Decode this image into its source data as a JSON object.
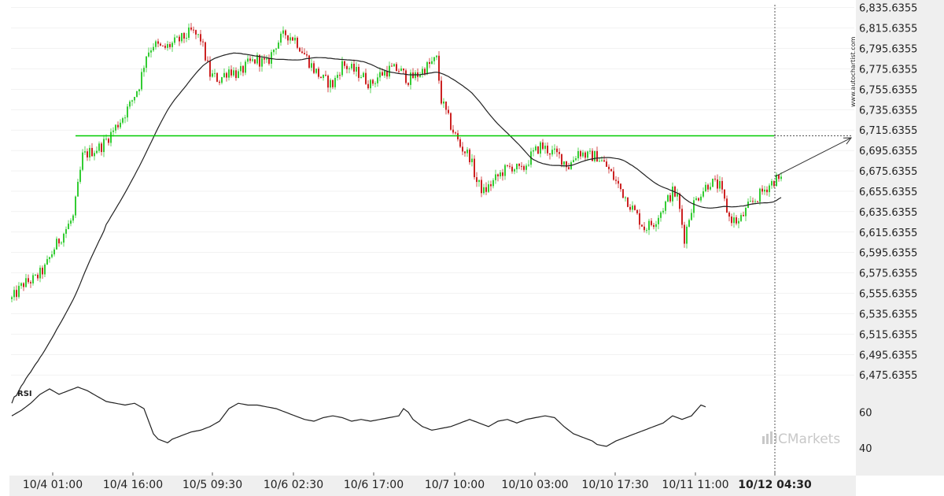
{
  "chart_data": {
    "type": "candlestick",
    "price_axis": {
      "range": [
        6465,
        6840
      ],
      "ticks": [
        "6,835.6355",
        "6,815.6355",
        "6,795.6355",
        "6,775.6355",
        "6,755.6355",
        "6,735.6355",
        "6,715.6355",
        "6,695.6355",
        "6,675.6355",
        "6,655.6355",
        "6,635.6355",
        "6,615.6355",
        "6,595.6355",
        "6,575.6355",
        "6,555.6355",
        "6,535.6355",
        "6,515.6355",
        "6,495.6355",
        "6,475.6355"
      ],
      "tick_values": [
        6835.6355,
        6815.6355,
        6795.6355,
        6775.6355,
        6755.6355,
        6735.6355,
        6715.6355,
        6695.6355,
        6675.6355,
        6655.6355,
        6635.6355,
        6615.6355,
        6595.6355,
        6575.6355,
        6555.6355,
        6535.6355,
        6515.6355,
        6495.6355,
        6475.6355
      ]
    },
    "time_axis": {
      "labels": [
        "10/4 01:00",
        "10/4 16:00",
        "10/5 09:30",
        "10/6 02:30",
        "10/6 17:00",
        "10/7 10:00",
        "10/10 03:00",
        "10/10 17:30",
        "10/11 11:00",
        "10/12 04:30"
      ],
      "bold_label": "10/12 04:30"
    },
    "price_anchors": [
      [
        0,
        6550
      ],
      [
        5,
        6565
      ],
      [
        10,
        6570
      ],
      [
        14,
        6580
      ],
      [
        18,
        6600
      ],
      [
        22,
        6615
      ],
      [
        26,
        6630
      ],
      [
        30,
        6690
      ],
      [
        34,
        6695
      ],
      [
        38,
        6700
      ],
      [
        42,
        6712
      ],
      [
        46,
        6725
      ],
      [
        50,
        6740
      ],
      [
        54,
        6760
      ],
      [
        57,
        6790
      ],
      [
        60,
        6800
      ],
      [
        64,
        6795
      ],
      [
        68,
        6800
      ],
      [
        72,
        6805
      ],
      [
        76,
        6812
      ],
      [
        80,
        6805
      ],
      [
        84,
        6770
      ],
      [
        88,
        6765
      ],
      [
        92,
        6775
      ],
      [
        96,
        6770
      ],
      [
        100,
        6780
      ],
      [
        104,
        6785
      ],
      [
        108,
        6780
      ],
      [
        112,
        6800
      ],
      [
        116,
        6810
      ],
      [
        120,
        6805
      ],
      [
        124,
        6790
      ],
      [
        128,
        6775
      ],
      [
        132,
        6765
      ],
      [
        136,
        6760
      ],
      [
        140,
        6780
      ],
      [
        144,
        6775
      ],
      [
        148,
        6770
      ],
      [
        152,
        6760
      ],
      [
        156,
        6770
      ],
      [
        160,
        6775
      ],
      [
        164,
        6775
      ],
      [
        168,
        6765
      ],
      [
        172,
        6770
      ],
      [
        176,
        6778
      ],
      [
        180,
        6785
      ],
      [
        182,
        6745
      ],
      [
        186,
        6720
      ],
      [
        190,
        6700
      ],
      [
        194,
        6690
      ],
      [
        197,
        6665
      ],
      [
        200,
        6655
      ],
      [
        204,
        6665
      ],
      [
        208,
        6675
      ],
      [
        212,
        6680
      ],
      [
        216,
        6675
      ],
      [
        220,
        6690
      ],
      [
        224,
        6700
      ],
      [
        228,
        6695
      ],
      [
        232,
        6690
      ],
      [
        236,
        6680
      ],
      [
        240,
        6695
      ],
      [
        244,
        6690
      ],
      [
        248,
        6690
      ],
      [
        252,
        6680
      ],
      [
        256,
        6665
      ],
      [
        260,
        6650
      ],
      [
        264,
        6635
      ],
      [
        268,
        6620
      ],
      [
        272,
        6625
      ],
      [
        276,
        6640
      ],
      [
        280,
        6655
      ],
      [
        282,
        6650
      ],
      [
        285,
        6610
      ],
      [
        288,
        6640
      ],
      [
        292,
        6655
      ],
      [
        296,
        6665
      ],
      [
        300,
        6660
      ],
      [
        304,
        6630
      ],
      [
        308,
        6625
      ],
      [
        312,
        6640
      ],
      [
        316,
        6650
      ],
      [
        320,
        6660
      ],
      [
        324,
        6668
      ],
      [
        326,
        6665
      ]
    ],
    "ma_period": 40,
    "rsi": {
      "label": "RSI",
      "ticks": [
        "60",
        "40"
      ],
      "tick_values": [
        60,
        40
      ],
      "range": [
        30,
        80
      ],
      "anchors": [
        [
          0,
          58
        ],
        [
          4,
          61
        ],
        [
          8,
          65
        ],
        [
          12,
          70
        ],
        [
          16,
          73
        ],
        [
          20,
          70
        ],
        [
          24,
          72
        ],
        [
          28,
          74
        ],
        [
          32,
          72
        ],
        [
          36,
          69
        ],
        [
          40,
          66
        ],
        [
          44,
          65
        ],
        [
          48,
          64
        ],
        [
          52,
          65
        ],
        [
          56,
          62
        ],
        [
          58,
          55
        ],
        [
          60,
          48
        ],
        [
          62,
          45
        ],
        [
          64,
          44
        ],
        [
          66,
          43
        ],
        [
          68,
          45
        ],
        [
          72,
          47
        ],
        [
          76,
          49
        ],
        [
          80,
          50
        ],
        [
          84,
          52
        ],
        [
          88,
          55
        ],
        [
          92,
          62
        ],
        [
          96,
          65
        ],
        [
          100,
          64
        ],
        [
          104,
          64
        ],
        [
          108,
          63
        ],
        [
          112,
          62
        ],
        [
          116,
          60
        ],
        [
          120,
          58
        ],
        [
          124,
          56
        ],
        [
          128,
          55
        ],
        [
          132,
          57
        ],
        [
          136,
          58
        ],
        [
          140,
          57
        ],
        [
          144,
          55
        ],
        [
          148,
          56
        ],
        [
          152,
          55
        ],
        [
          156,
          56
        ],
        [
          160,
          57
        ],
        [
          164,
          58
        ],
        [
          166,
          62
        ],
        [
          168,
          60
        ],
        [
          170,
          56
        ],
        [
          174,
          52
        ],
        [
          178,
          50
        ],
        [
          182,
          51
        ],
        [
          186,
          52
        ],
        [
          190,
          54
        ],
        [
          194,
          56
        ],
        [
          198,
          54
        ],
        [
          202,
          52
        ],
        [
          206,
          55
        ],
        [
          210,
          56
        ],
        [
          214,
          54
        ],
        [
          218,
          56
        ],
        [
          222,
          57
        ],
        [
          226,
          58
        ],
        [
          230,
          57
        ],
        [
          234,
          52
        ],
        [
          238,
          48
        ],
        [
          242,
          46
        ],
        [
          246,
          44
        ],
        [
          248,
          42
        ],
        [
          252,
          41
        ],
        [
          256,
          44
        ],
        [
          260,
          46
        ],
        [
          264,
          48
        ],
        [
          268,
          50
        ],
        [
          272,
          52
        ],
        [
          276,
          54
        ],
        [
          278,
          56
        ],
        [
          280,
          58
        ],
        [
          282,
          57
        ],
        [
          284,
          56
        ],
        [
          286,
          57
        ],
        [
          288,
          58
        ],
        [
          290,
          61
        ],
        [
          292,
          64
        ],
        [
          294,
          63
        ]
      ]
    },
    "resistance_level": 6710,
    "projection": {
      "from_value": 6670,
      "to_value": 6708
    }
  },
  "watermark": "www.autochartist.com",
  "brand": "ICMarkets",
  "colors": {
    "up": "#33cc33",
    "down": "#cc2222",
    "level": "#00cc00",
    "line": "#222222",
    "grid": "#e5e5e5",
    "axis_bg": "#efefef"
  }
}
